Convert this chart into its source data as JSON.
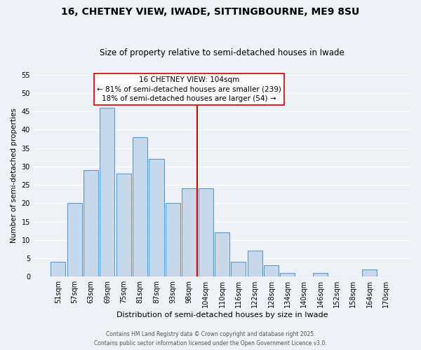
{
  "title": "16, CHETNEY VIEW, IWADE, SITTINGBOURNE, ME9 8SU",
  "subtitle": "Size of property relative to semi-detached houses in Iwade",
  "xlabel": "Distribution of semi-detached houses by size in Iwade",
  "ylabel": "Number of semi-detached properties",
  "bar_labels": [
    "51sqm",
    "57sqm",
    "63sqm",
    "69sqm",
    "75sqm",
    "81sqm",
    "87sqm",
    "93sqm",
    "98sqm",
    "104sqm",
    "110sqm",
    "116sqm",
    "122sqm",
    "128sqm",
    "134sqm",
    "140sqm",
    "146sqm",
    "152sqm",
    "158sqm",
    "164sqm",
    "170sqm"
  ],
  "bar_values": [
    4,
    20,
    29,
    46,
    28,
    38,
    32,
    20,
    24,
    24,
    12,
    4,
    7,
    3,
    1,
    0,
    1,
    0,
    0,
    2,
    0
  ],
  "bar_color": "#c8d8e8",
  "bar_edge_color": "#5b9bd5",
  "vline_color": "#cc0000",
  "annotation_title": "16 CHETNEY VIEW: 104sqm",
  "annotation_line1": "← 81% of semi-detached houses are smaller (239)",
  "annotation_line2": "18% of semi-detached houses are larger (54) →",
  "annotation_box_color": "#ffffff",
  "annotation_box_edge": "#cc0000",
  "ylim": [
    0,
    55
  ],
  "yticks": [
    0,
    5,
    10,
    15,
    20,
    25,
    30,
    35,
    40,
    45,
    50,
    55
  ],
  "background_color": "#eef2f7",
  "grid_color": "#ffffff",
  "footer1": "Contains HM Land Registry data © Crown copyright and database right 2025.",
  "footer2": "Contains public sector information licensed under the Open Government Licence v3.0."
}
